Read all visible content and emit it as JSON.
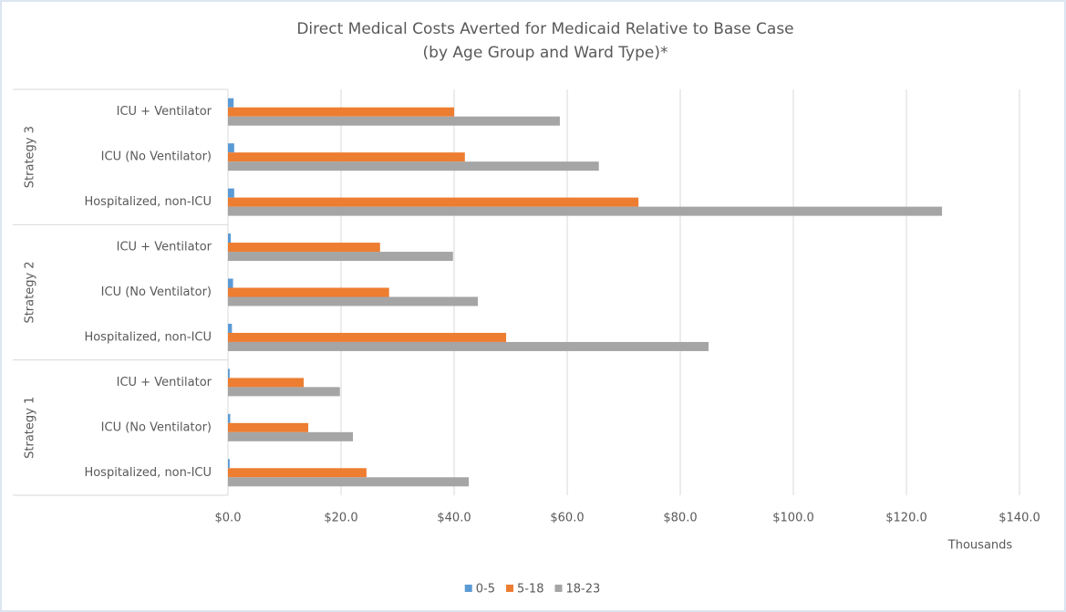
{
  "chart_data": {
    "type": "bar",
    "orientation": "horizontal",
    "title_lines": [
      "Direct Medical Costs Averted for Medicaid Relative to Base Case",
      "(by Age Group and Ward Type)*"
    ],
    "category_groups": [
      "Strategy 3",
      "Strategy 2",
      "Strategy 1"
    ],
    "categories": [
      "ICU + Ventilator",
      "ICU (No Ventilator)",
      "Hospitalized, non-ICU",
      "ICU + Ventilator",
      "ICU (No Ventilator)",
      "Hospitalized, non-ICU",
      "ICU + Ventilator",
      "ICU (No Ventilator)",
      "Hospitalized, non-ICU"
    ],
    "series": [
      {
        "name": "0-5",
        "color": "#5b9bd5",
        "values": [
          1.0,
          1.1,
          1.1,
          0.5,
          0.9,
          0.7,
          0.3,
          0.4,
          0.3
        ]
      },
      {
        "name": "5-18",
        "color": "#ed7d31",
        "values": [
          40.0,
          41.9,
          72.6,
          26.9,
          28.5,
          49.2,
          13.4,
          14.2,
          24.5
        ]
      },
      {
        "name": "18-23",
        "color": "#a5a5a5",
        "values": [
          58.7,
          65.6,
          126.3,
          39.8,
          44.2,
          85.0,
          19.8,
          22.1,
          42.6
        ]
      }
    ],
    "xlim": [
      0,
      140
    ],
    "xticks": [
      {
        "value": 0,
        "label": "$0.0"
      },
      {
        "value": 20,
        "label": "$20.0"
      },
      {
        "value": 40,
        "label": "$40.0"
      },
      {
        "value": 60,
        "label": "$60.0"
      },
      {
        "value": 80,
        "label": "$80.0"
      },
      {
        "value": 100,
        "label": "$100.0"
      },
      {
        "value": 120,
        "label": "$120.0"
      },
      {
        "value": 140,
        "label": "$140.0"
      }
    ],
    "x_unit_label": "Thousands",
    "grid": true,
    "legend_position": "bottom"
  }
}
